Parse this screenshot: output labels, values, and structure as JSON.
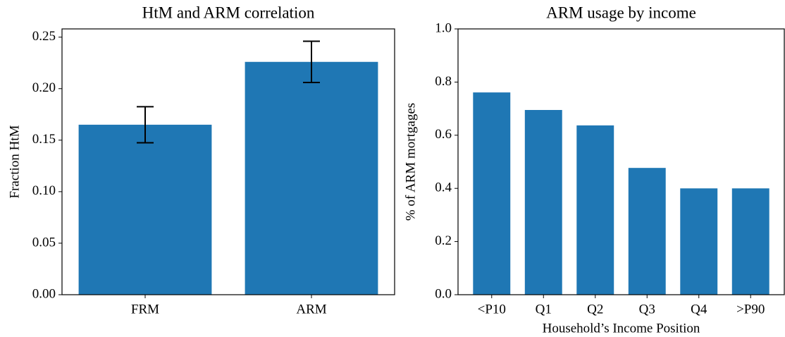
{
  "chart_data": [
    {
      "type": "bar",
      "title": "HtM and ARM correlation",
      "y_label": "Fraction HtM",
      "categories": [
        "FRM",
        "ARM"
      ],
      "values": [
        0.165,
        0.226
      ],
      "errors": [
        0.0175,
        0.02
      ],
      "color": "#1f77b4",
      "error_color": "#000000",
      "ylim": [
        0,
        0.258
      ],
      "yticks": [
        {
          "value": 0,
          "label": "0.00"
        },
        0.05,
        {
          "value": 0.1,
          "label": "0.10"
        },
        0.15,
        {
          "value": 0.2,
          "label": "0.20"
        },
        0.25
      ]
    },
    {
      "type": "bar",
      "title": "ARM usage by income",
      "y_label": "% of ARM mortgages",
      "x_label": "Household’s Income Position",
      "categories": [
        "<P10",
        "Q1",
        "Q2",
        "Q3",
        "Q4",
        ">P90"
      ],
      "values": [
        0.761,
        0.695,
        0.637,
        0.477,
        0.4,
        0.4
      ],
      "color": "#1f77b4",
      "ylim": [
        0,
        1
      ],
      "yticks": [
        {
          "value": 0,
          "label": "0.0"
        },
        0.2,
        0.4,
        0.6,
        0.8,
        {
          "value": 1,
          "label": "1.0"
        }
      ]
    }
  ]
}
